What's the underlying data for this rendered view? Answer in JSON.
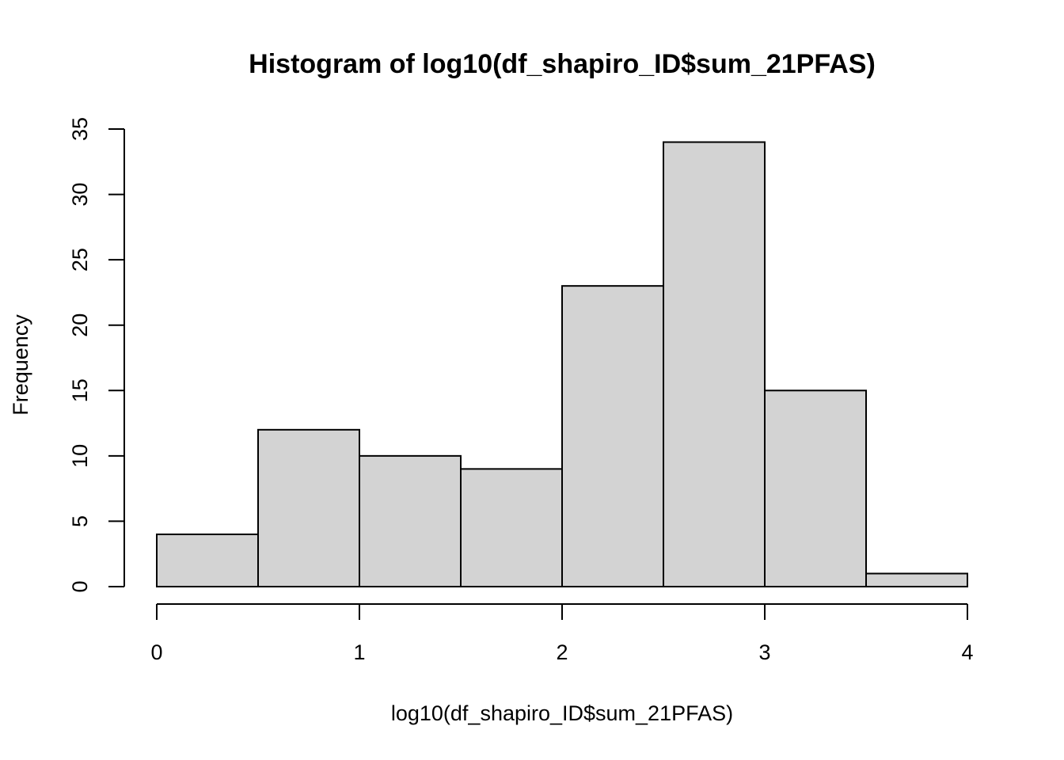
{
  "chart_data": {
    "type": "bar",
    "title": "Histogram of log10(df_shapiro_ID$sum_21PFAS)",
    "xlabel": "log10(df_shapiro_ID$sum_21PFAS)",
    "ylabel": "Frequency",
    "bins": [
      {
        "start": 0.0,
        "end": 0.5,
        "count": 4
      },
      {
        "start": 0.5,
        "end": 1.0,
        "count": 12
      },
      {
        "start": 1.0,
        "end": 1.5,
        "count": 10
      },
      {
        "start": 1.5,
        "end": 2.0,
        "count": 9
      },
      {
        "start": 2.0,
        "end": 2.5,
        "count": 23
      },
      {
        "start": 2.5,
        "end": 3.0,
        "count": 34
      },
      {
        "start": 3.0,
        "end": 3.5,
        "count": 15
      },
      {
        "start": 3.5,
        "end": 4.0,
        "count": 1
      }
    ],
    "xlim": [
      0,
      4
    ],
    "ylim": [
      0,
      35
    ],
    "x_ticks": [
      0,
      1,
      2,
      3,
      4
    ],
    "x_tick_labels": [
      "0",
      "1",
      "2",
      "3",
      "4"
    ],
    "y_ticks": [
      0,
      5,
      10,
      15,
      20,
      25,
      30,
      35
    ],
    "y_tick_labels": [
      "0",
      "5",
      "10",
      "15",
      "20",
      "25",
      "30",
      "35"
    ],
    "bar_color": "#d3d3d3",
    "grid": false,
    "legend": "none"
  }
}
